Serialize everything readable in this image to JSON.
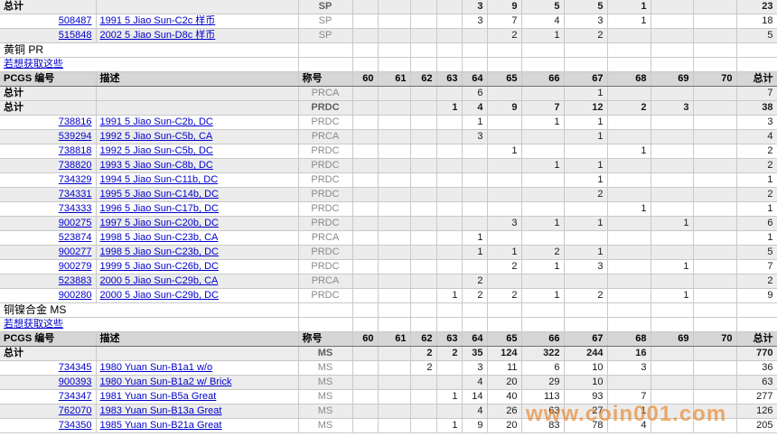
{
  "watermark": "www.coin001.com",
  "link_text": "若想获取这些",
  "table": {
    "headers": {
      "number": "PCGS 编号",
      "desc": "描述",
      "desig": "称号",
      "grades": [
        "60",
        "61",
        "62",
        "63",
        "64",
        "65",
        "66",
        "67",
        "68",
        "69",
        "70"
      ],
      "total": "总计"
    },
    "total_label": "总计",
    "rows": [
      {
        "kind": "total",
        "bold": true,
        "desig": "SP",
        "cells": [
          "",
          "",
          "",
          "",
          "3",
          "9",
          "5",
          "5",
          "1",
          "",
          ""
        ],
        "total": "23"
      },
      {
        "kind": "coin",
        "num": "508487",
        "desc": "1991 5 Jiao Sun-C2c 样币",
        "desig": "SP",
        "cells": [
          "",
          "",
          "",
          "",
          "3",
          "7",
          "4",
          "3",
          "1",
          "",
          ""
        ],
        "total": "18"
      },
      {
        "kind": "coin",
        "num": "515848",
        "desc": "2002 5 Jiao Sun-D8c 样币",
        "desig": "SP",
        "cells": [
          "",
          "",
          "",
          "",
          "",
          "2",
          "1",
          "2",
          "",
          "",
          ""
        ],
        "total": "5"
      },
      {
        "kind": "section",
        "title": "黄铜  PR"
      },
      {
        "kind": "link"
      },
      {
        "kind": "header"
      },
      {
        "kind": "total",
        "bold": false,
        "desig": "PRCA",
        "cells": [
          "",
          "",
          "",
          "",
          "6",
          "",
          "",
          "1",
          "",
          "",
          ""
        ],
        "total": "7"
      },
      {
        "kind": "total",
        "bold": true,
        "desig": "PRDC",
        "cells": [
          "",
          "",
          "",
          "1",
          "4",
          "9",
          "7",
          "12",
          "2",
          "3",
          ""
        ],
        "total": "38"
      },
      {
        "kind": "coin",
        "num": "738816",
        "desc": "1991 5 Jiao Sun-C2b, DC",
        "desig": "PRDC",
        "cells": [
          "",
          "",
          "",
          "",
          "1",
          "",
          "1",
          "1",
          "",
          "",
          ""
        ],
        "total": "3"
      },
      {
        "kind": "coin",
        "num": "539294",
        "desc": "1992 5 Jiao Sun-C5b, CA",
        "desig": "PRCA",
        "cells": [
          "",
          "",
          "",
          "",
          "3",
          "",
          "",
          "1",
          "",
          "",
          ""
        ],
        "total": "4"
      },
      {
        "kind": "coin",
        "num": "738818",
        "desc": "1992 5 Jiao Sun-C5b, DC",
        "desig": "PRDC",
        "cells": [
          "",
          "",
          "",
          "",
          "",
          "1",
          "",
          "",
          "1",
          "",
          ""
        ],
        "total": "2"
      },
      {
        "kind": "coin",
        "num": "738820",
        "desc": "1993 5 Jiao Sun-C8b, DC",
        "desig": "PRDC",
        "cells": [
          "",
          "",
          "",
          "",
          "",
          "",
          "1",
          "1",
          "",
          "",
          ""
        ],
        "total": "2"
      },
      {
        "kind": "coin",
        "num": "734329",
        "desc": "1994 5 Jiao Sun-C11b, DC",
        "desig": "PRDC",
        "cells": [
          "",
          "",
          "",
          "",
          "",
          "",
          "",
          "1",
          "",
          "",
          ""
        ],
        "total": "1"
      },
      {
        "kind": "coin",
        "num": "734331",
        "desc": "1995 5 Jiao Sun-C14b, DC",
        "desig": "PRDC",
        "cells": [
          "",
          "",
          "",
          "",
          "",
          "",
          "",
          "2",
          "",
          "",
          ""
        ],
        "total": "2"
      },
      {
        "kind": "coin",
        "num": "734333",
        "desc": "1996 5 Jiao Sun-C17b, DC",
        "desig": "PRDC",
        "cells": [
          "",
          "",
          "",
          "",
          "",
          "",
          "",
          "",
          "1",
          "",
          ""
        ],
        "total": "1"
      },
      {
        "kind": "coin",
        "num": "900275",
        "desc": "1997 5 Jiao Sun-C20b, DC",
        "desig": "PRDC",
        "cells": [
          "",
          "",
          "",
          "",
          "",
          "3",
          "1",
          "1",
          "",
          "1",
          ""
        ],
        "total": "6"
      },
      {
        "kind": "coin",
        "num": "523874",
        "desc": "1998 5 Jiao Sun-C23b, CA",
        "desig": "PRCA",
        "cells": [
          "",
          "",
          "",
          "",
          "1",
          "",
          "",
          "",
          "",
          "",
          ""
        ],
        "total": "1"
      },
      {
        "kind": "coin",
        "num": "900277",
        "desc": "1998 5 Jiao Sun-C23b, DC",
        "desig": "PRDC",
        "cells": [
          "",
          "",
          "",
          "",
          "1",
          "1",
          "2",
          "1",
          "",
          "",
          ""
        ],
        "total": "5"
      },
      {
        "kind": "coin",
        "num": "900279",
        "desc": "1999 5 Jiao Sun-C26b, DC",
        "desig": "PRDC",
        "cells": [
          "",
          "",
          "",
          "",
          "",
          "2",
          "1",
          "3",
          "",
          "1",
          ""
        ],
        "total": "7"
      },
      {
        "kind": "coin",
        "num": "523883",
        "desc": "2000 5 Jiao Sun-C29b, CA",
        "desig": "PRCA",
        "cells": [
          "",
          "",
          "",
          "",
          "2",
          "",
          "",
          "",
          "",
          "",
          ""
        ],
        "total": "2"
      },
      {
        "kind": "coin",
        "num": "900280",
        "desc": "2000 5 Jiao Sun-C29b, DC",
        "desig": "PRDC",
        "cells": [
          "",
          "",
          "",
          "1",
          "2",
          "2",
          "1",
          "2",
          "",
          "1",
          ""
        ],
        "total": "9"
      },
      {
        "kind": "section",
        "title": "铜镍合金  MS"
      },
      {
        "kind": "link"
      },
      {
        "kind": "header"
      },
      {
        "kind": "total",
        "bold": true,
        "desig": "MS",
        "cells": [
          "",
          "",
          "2",
          "2",
          "35",
          "124",
          "322",
          "244",
          "16",
          "",
          ""
        ],
        "total": "770"
      },
      {
        "kind": "coin",
        "num": "734345",
        "desc": "1980 Yuan Sun-B1a1 w/o",
        "desig": "MS",
        "cells": [
          "",
          "",
          "2",
          "",
          "3",
          "11",
          "6",
          "10",
          "3",
          "",
          ""
        ],
        "total": "36"
      },
      {
        "kind": "coin",
        "num": "900393",
        "desc": "1980 Yuan Sun-B1a2 w/ Brick",
        "desig": "MS",
        "cells": [
          "",
          "",
          "",
          "",
          "4",
          "20",
          "29",
          "10",
          "",
          "",
          ""
        ],
        "total": "63"
      },
      {
        "kind": "coin",
        "num": "734347",
        "desc": "1981 Yuan Sun-B5a Great",
        "desig": "MS",
        "cells": [
          "",
          "",
          "",
          "1",
          "14",
          "40",
          "113",
          "93",
          "7",
          "",
          ""
        ],
        "total": "277"
      },
      {
        "kind": "coin",
        "num": "762070",
        "desc": "1983 Yuan Sun-B13a Great",
        "desig": "MS",
        "cells": [
          "",
          "",
          "",
          "",
          "4",
          "26",
          "63",
          "27",
          "1",
          "",
          ""
        ],
        "total": "126"
      },
      {
        "kind": "coin",
        "num": "734350",
        "desc": "1985 Yuan Sun-B21a Great",
        "desig": "MS",
        "cells": [
          "",
          "",
          "",
          "1",
          "9",
          "20",
          "83",
          "78",
          "4",
          "",
          ""
        ],
        "total": "205"
      }
    ]
  }
}
